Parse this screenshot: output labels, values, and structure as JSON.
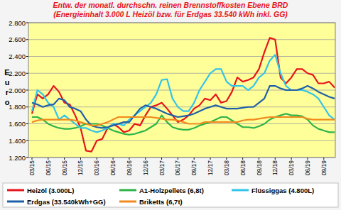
{
  "chart_data": {
    "type": "line",
    "title": "Entw. der monatl. durchschn. reinen Brennstoffkosten Ebene BRD",
    "subtitle": "(Energieinhalt 3.000 L Heizöl bzw. für Erdgas 33.540 kWh inkl. GG)",
    "y_label": "Euro",
    "categories": [
      "03/15",
      null,
      null,
      "06/15",
      null,
      null,
      "09/15",
      null,
      null,
      "12/15",
      null,
      null,
      "03/16",
      null,
      null,
      "06/16",
      null,
      null,
      "09/16",
      null,
      null,
      "12/16",
      null,
      null,
      "03/17",
      null,
      null,
      "06/17",
      null,
      null,
      "09/17",
      null,
      null,
      "12/17",
      null,
      null,
      "03/18",
      null,
      null,
      "06/18",
      null,
      null,
      "09/18",
      null,
      null,
      "12/18",
      null,
      null,
      "03/19",
      null,
      null,
      "06/19",
      null,
      null,
      "09/19",
      null,
      null
    ],
    "series": [
      {
        "name": "Heizöl (3.000L)",
        "color": "#e8141c",
        "values": [
          1720,
          1950,
          1900,
          1950,
          2050,
          1980,
          1850,
          1830,
          1700,
          1550,
          1280,
          1270,
          1400,
          1420,
          1550,
          1600,
          1560,
          1500,
          1520,
          1600,
          1580,
          1700,
          1800,
          1820,
          1850,
          1780,
          1700,
          1620,
          1650,
          1700,
          1780,
          1820,
          1900,
          1880,
          1950,
          1850,
          1870,
          1980,
          2150,
          2100,
          2120,
          2150,
          2250,
          2450,
          2620,
          2600,
          2150,
          2080,
          2150,
          2250,
          2250,
          2200,
          2180,
          2080,
          2080,
          2100,
          2030
        ]
      },
      {
        "name": "A1-Holzpellets (6,8t)",
        "color": "#2db34a",
        "values": [
          1680,
          1680,
          1650,
          1600,
          1570,
          1550,
          1540,
          1540,
          1550,
          1570,
          1600,
          1600,
          1600,
          1580,
          1550,
          1520,
          1500,
          1480,
          1470,
          1480,
          1500,
          1520,
          1560,
          1600,
          1700,
          1620,
          1560,
          1540,
          1530,
          1530,
          1550,
          1580,
          1600,
          1620,
          1650,
          1680,
          1680,
          1640,
          1600,
          1560,
          1560,
          1550,
          1570,
          1600,
          1650,
          1680,
          1700,
          1720,
          1700,
          1700,
          1690,
          1650,
          1580,
          1540,
          1520,
          1500,
          1500
        ]
      },
      {
        "name": "Flüssiggas (4.800L)",
        "color": "#33c4e8",
        "values": [
          1750,
          2000,
          1950,
          1850,
          1800,
          1650,
          1700,
          1650,
          1600,
          1550,
          1550,
          1520,
          1500,
          1520,
          1550,
          1600,
          1600,
          1580,
          1650,
          1700,
          1750,
          1800,
          1850,
          1950,
          2120,
          2130,
          1900,
          1800,
          1750,
          1750,
          1850,
          2000,
          2100,
          2200,
          2250,
          2250,
          2100,
          2050,
          2050,
          2050,
          2000,
          2050,
          2150,
          2200,
          2350,
          2420,
          2200,
          2050,
          2000,
          2000,
          2000,
          1980,
          1950,
          1900,
          1800,
          1700,
          1650
        ]
      },
      {
        "name": "Erdgas (33.540kWh+GG)",
        "color": "#1f5fa8",
        "values": [
          1850,
          1830,
          1800,
          1820,
          1830,
          1900,
          1880,
          1800,
          1780,
          1750,
          1650,
          1580,
          1560,
          1550,
          1560,
          1580,
          1600,
          1620,
          1620,
          1700,
          1780,
          1820,
          1800,
          1780,
          1750,
          1720,
          1700,
          1680,
          1690,
          1700,
          1720,
          1750,
          1780,
          1800,
          1820,
          1800,
          1780,
          1780,
          1780,
          1790,
          1800,
          1800,
          1850,
          1900,
          2050,
          2050,
          2020,
          2000,
          2000,
          2000,
          2020,
          2050,
          2020,
          1980,
          1950,
          1920,
          1900
        ]
      },
      {
        "name": "Briketts (6,7t)",
        "color": "#f08a1e",
        "values": [
          1620,
          1640,
          1650,
          1650,
          1650,
          1650,
          1650,
          1650,
          1640,
          1620,
          1600,
          1580,
          1580,
          1600,
          1620,
          1650,
          1680,
          1680,
          1680,
          1680,
          1680,
          1680,
          1680,
          1670,
          1660,
          1650,
          1650,
          1640,
          1620,
          1600,
          1600,
          1600,
          1620,
          1620,
          1620,
          1620,
          1620,
          1620,
          1620,
          1640,
          1650,
          1650,
          1660,
          1670,
          1680,
          1680,
          1680,
          1680,
          1680,
          1680,
          1680,
          1660,
          1650,
          1650,
          1650,
          1650,
          1650
        ]
      }
    ],
    "ylim": [
      1200,
      2800
    ],
    "yticks": [
      {
        "value": 1200,
        "label": "1.200"
      },
      {
        "value": 1400,
        "label": "1.400"
      },
      {
        "value": 1600,
        "label": "1.600"
      },
      {
        "value": 1800,
        "label": "1.800"
      },
      {
        "value": 2000,
        "label": "2.000"
      },
      {
        "value": 2200,
        "label": "2.200"
      },
      {
        "value": 2400,
        "label": "2.400"
      },
      {
        "value": 2600,
        "label": "2.600"
      },
      {
        "value": 2800,
        "label": "2.800"
      }
    ],
    "grid": true,
    "legend": "bottom"
  }
}
